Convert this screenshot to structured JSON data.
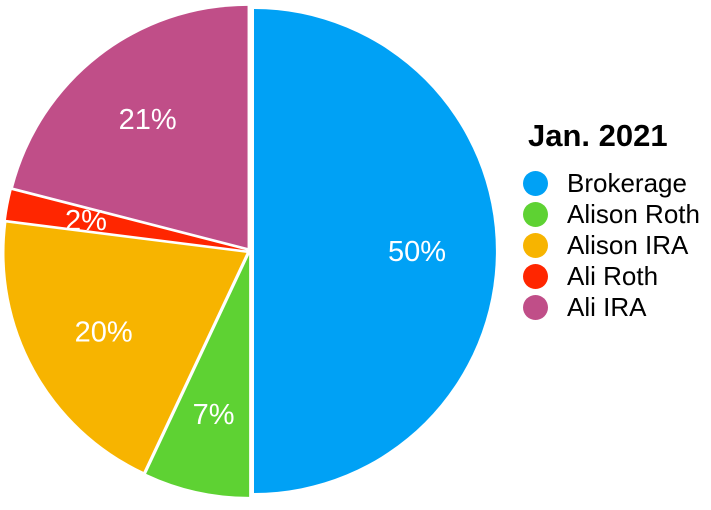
{
  "page": {
    "background": "#FFFFFF"
  },
  "chart_data": {
    "type": "pie",
    "title": "Jan. 2021",
    "direction": "clockwise",
    "start_angle_deg": 0,
    "legend_position": "right",
    "data_label_color": "#FFFFFF",
    "slices": [
      {
        "label": "Brokerage",
        "value": 50,
        "percent_label": "50%",
        "color": "#00A1F5"
      },
      {
        "label": "Alison Roth",
        "value": 7,
        "percent_label": "7%",
        "color": "#5ED233"
      },
      {
        "label": "Alison IRA",
        "value": 20,
        "percent_label": "20%",
        "color": "#F7B400"
      },
      {
        "label": "Ali Roth",
        "value": 2,
        "percent_label": "2%",
        "color": "#FF2600"
      },
      {
        "label": "Ali IRA",
        "value": 21,
        "percent_label": "21%",
        "color": "#C04E88"
      }
    ]
  }
}
